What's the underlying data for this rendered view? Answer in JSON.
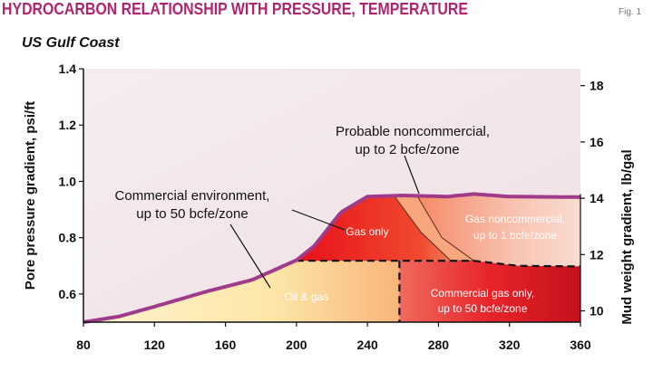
{
  "figure": {
    "title": "HYDROCARBON RELATIONSHIP WITH PRESSURE, TEMPERATURE",
    "fig_label": "Fig. 1",
    "subtitle": "US Gulf Coast"
  },
  "colors": {
    "title": "#b0246e",
    "boundary": "#a03a8a",
    "plot_bg": "#f3e6ea",
    "red": "#e01e1e",
    "orange": "#f28a5a",
    "yellow": "#fbe3a0",
    "pink": "#f7d2cc"
  },
  "chart_data": {
    "type": "area",
    "xlabel": "",
    "ylabel": "Pore pressure gradient, psi/ft",
    "y2label": "Mud weight gradient, lb/gal",
    "xlim": [
      80,
      360
    ],
    "ylim": [
      0.5,
      1.4
    ],
    "y2lim": [
      9.6,
      18.6
    ],
    "x_ticks": [
      "80",
      "120",
      "160",
      "200",
      "240",
      "280",
      "320",
      "360"
    ],
    "y_ticks": [
      "0.6",
      "0.8",
      "1.0",
      "1.2",
      "1.4"
    ],
    "y2_ticks": [
      "10",
      "12",
      "14",
      "16",
      "18"
    ],
    "grid": false,
    "boundary_curve": [
      [
        80,
        0.5
      ],
      [
        100,
        0.52
      ],
      [
        120,
        0.555
      ],
      [
        150,
        0.61
      ],
      [
        175,
        0.65
      ],
      [
        200,
        0.72
      ],
      [
        210,
        0.77
      ],
      [
        225,
        0.89
      ],
      [
        240,
        0.946
      ],
      [
        260,
        0.95
      ],
      [
        285,
        0.946
      ],
      [
        300,
        0.955
      ],
      [
        320,
        0.946
      ],
      [
        360,
        0.944
      ]
    ],
    "dashed_boundaries": [
      [
        [
          200,
          0.718
        ],
        [
          300,
          0.718
        ],
        [
          325,
          0.7
        ],
        [
          360,
          0.698
        ]
      ],
      [
        [
          258,
          0.718
        ],
        [
          258,
          0.5
        ]
      ]
    ],
    "annotations": [
      "Probable noncommercial,",
      "up to 2 bcfe/zone",
      "Commercial environment,",
      "up to 50 bcfe/zone",
      "Gas only",
      "Gas noncommercial,",
      "up to 1 bcfe/zone",
      "Oil & gas",
      "Commercial gas only,",
      "up to 50 bcfe/zone"
    ]
  }
}
